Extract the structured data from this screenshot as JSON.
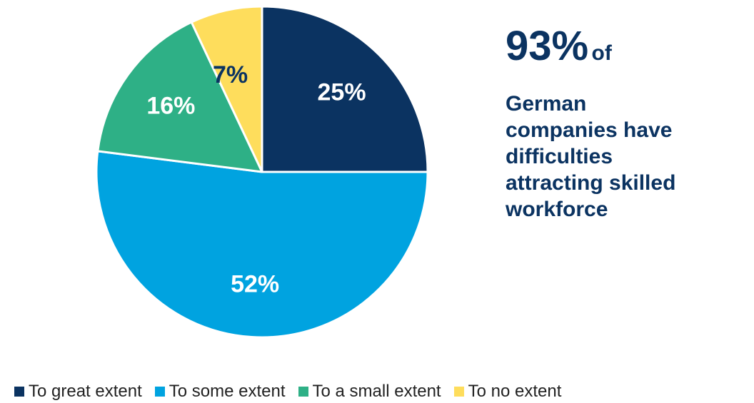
{
  "chart_data": {
    "type": "pie",
    "categories": [
      "To great extent",
      "To some extent",
      "To a small extent",
      "To no extent"
    ],
    "values": [
      25,
      52,
      16,
      7
    ],
    "labels": [
      "25%",
      "52%",
      "16%",
      "7%"
    ],
    "colors": [
      "#0b3361",
      "#00a3e0",
      "#2eb086",
      "#fedd5c"
    ],
    "label_colors": [
      "#ffffff",
      "#ffffff",
      "#ffffff",
      "#0b3361"
    ],
    "start_angle": "12 o'clock",
    "direction": "clockwise",
    "legend_position": "bottom-left"
  },
  "callout": {
    "big": "93%",
    "of": "of",
    "body_lines": [
      "German",
      "companies have",
      "difficulties",
      "attracting skilled",
      "workforce"
    ],
    "color": "#0b3361"
  }
}
